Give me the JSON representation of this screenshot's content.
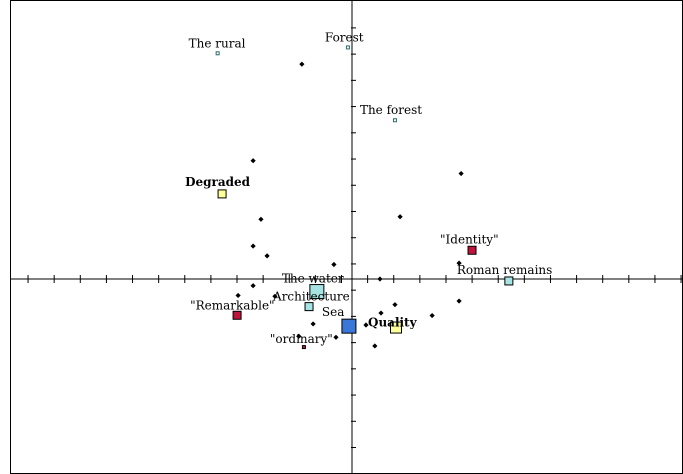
{
  "chart_data": {
    "type": "scatter",
    "title": "",
    "xlabel": "",
    "ylabel": "",
    "xlim": [
      -1.0,
      1.0
    ],
    "ylim": [
      -1.0,
      1.0
    ],
    "grid": false,
    "legend": "none",
    "axis_color": "#000000",
    "labeled_points": [
      {
        "label": "The rural",
        "x": -0.394,
        "y": 0.809,
        "marker": "hollow-square",
        "color": "#a6e3e3",
        "size": "tiny",
        "bold": false
      },
      {
        "label": "Forest",
        "x": -0.012,
        "y": 0.83,
        "marker": "hollow-square",
        "color": "#a6e3e3",
        "size": "tiny",
        "bold": false
      },
      {
        "label": "The forest",
        "x": 0.126,
        "y": 0.569,
        "marker": "hollow-square",
        "color": "#a6e3e3",
        "size": "tiny",
        "bold": false
      },
      {
        "label": "Degraded",
        "x": -0.381,
        "y": 0.305,
        "marker": "square",
        "color": "#ffff99",
        "size": "small",
        "bold": true
      },
      {
        "label": "\"Identity\"",
        "x": 0.352,
        "y": 0.103,
        "marker": "square",
        "color": "#c0143c",
        "size": "small",
        "bold": false
      },
      {
        "label": "Roman remains",
        "x": 0.46,
        "y": -0.007,
        "marker": "square",
        "color": "#a6e3e3",
        "size": "small",
        "bold": false
      },
      {
        "label": "The water",
        "x": -0.103,
        "y": -0.045,
        "marker": "square",
        "color": "#a6e3e3",
        "size": "large",
        "bold": false
      },
      {
        "label": "Architecture",
        "x": -0.126,
        "y": -0.099,
        "marker": "square",
        "color": "#a6e3e3",
        "size": "small",
        "bold": false
      },
      {
        "label": "\"Remarkable\"",
        "x": -0.337,
        "y": -0.13,
        "marker": "square",
        "color": "#c0143c",
        "size": "small",
        "bold": false
      },
      {
        "label": "Sea",
        "x": -0.009,
        "y": -0.169,
        "marker": "square",
        "color": "#3a78d8",
        "size": "large",
        "bold": false
      },
      {
        "label": "Quality",
        "x": 0.129,
        "y": -0.174,
        "marker": "square",
        "color": "#ffff99",
        "size": "medium",
        "bold": true
      },
      {
        "label": "\"ordinary\"",
        "x": -0.141,
        "y": -0.244,
        "marker": "square",
        "color": "#c0143c",
        "size": "tiny",
        "bold": false
      }
    ],
    "points": [
      {
        "x": -0.147,
        "y": 0.77
      },
      {
        "x": -0.29,
        "y": 0.424
      },
      {
        "x": 0.32,
        "y": 0.378
      },
      {
        "x": -0.267,
        "y": 0.214
      },
      {
        "x": 0.141,
        "y": 0.223
      },
      {
        "x": -0.29,
        "y": 0.118
      },
      {
        "x": -0.249,
        "y": 0.083
      },
      {
        "x": -0.053,
        "y": 0.052
      },
      {
        "x": 0.082,
        "y": 0.0
      },
      {
        "x": 0.314,
        "y": 0.057
      },
      {
        "x": -0.334,
        "y": -0.059
      },
      {
        "x": -0.29,
        "y": -0.024
      },
      {
        "x": -0.226,
        "y": -0.062
      },
      {
        "x": 0.314,
        "y": -0.079
      },
      {
        "x": 0.126,
        "y": -0.092
      },
      {
        "x": 0.085,
        "y": -0.122
      },
      {
        "x": 0.235,
        "y": -0.131
      },
      {
        "x": -0.114,
        "y": -0.161
      },
      {
        "x": 0.041,
        "y": -0.165
      },
      {
        "x": -0.156,
        "y": -0.205
      },
      {
        "x": -0.047,
        "y": -0.209
      },
      {
        "x": 0.067,
        "y": -0.24
      }
    ]
  }
}
